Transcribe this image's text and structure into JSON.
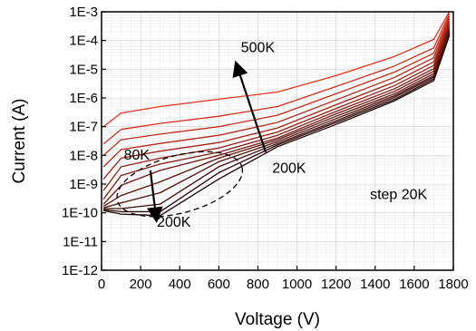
{
  "chart_data": {
    "type": "line",
    "title": "",
    "xlabel": "Voltage (V)",
    "ylabel": "Current (A)",
    "xlim": [
      0,
      1800
    ],
    "ylim": [
      1e-12,
      0.001
    ],
    "y_scale": "log",
    "x_ticks": [
      "0",
      "200",
      "400",
      "600",
      "800",
      "1000",
      "1200",
      "1400",
      "1600",
      "1800"
    ],
    "y_ticks": [
      "1E-12",
      "1E-11",
      "1E-10",
      "1E-9",
      "1E-8",
      "1E-7",
      "1E-6",
      "1E-5",
      "1E-4",
      "1E-3"
    ],
    "grid": true,
    "legend": "none",
    "series_color_range": [
      "#1a0000",
      "#e8321e"
    ],
    "series": [
      {
        "values": [
          [
            10,
            1.2e-10
          ],
          [
            100,
            9e-11
          ],
          [
            300,
            8e-11
          ],
          [
            600,
            1.5e-09
          ],
          [
            900,
            2e-08
          ],
          [
            1200,
            1.2e-07
          ],
          [
            1500,
            8e-07
          ],
          [
            1700,
            4e-06
          ],
          [
            1780,
            0.00015
          ]
        ]
      },
      {
        "values": [
          [
            10,
            1.3e-10
          ],
          [
            100,
            1.1e-10
          ],
          [
            300,
            1.1e-10
          ],
          [
            600,
            2.5e-09
          ],
          [
            900,
            2.3e-08
          ],
          [
            1200,
            1.4e-07
          ],
          [
            1500,
            9e-07
          ],
          [
            1700,
            4.6e-06
          ],
          [
            1780,
            0.00017
          ]
        ]
      },
      {
        "values": [
          [
            10,
            1.4e-10
          ],
          [
            100,
            1.4e-10
          ],
          [
            300,
            2e-10
          ],
          [
            600,
            4e-09
          ],
          [
            900,
            2.6e-08
          ],
          [
            1200,
            1.6e-07
          ],
          [
            1500,
            1.05e-06
          ],
          [
            1700,
            5.3e-06
          ],
          [
            1780,
            0.00019
          ]
        ]
      },
      {
        "values": [
          [
            10,
            1.5e-10
          ],
          [
            100,
            2.2e-10
          ],
          [
            300,
            5e-10
          ],
          [
            600,
            6e-09
          ],
          [
            900,
            3e-08
          ],
          [
            1200,
            1.9e-07
          ],
          [
            1500,
            1.2e-06
          ],
          [
            1700,
            6e-06
          ],
          [
            1780,
            0.00021
          ]
        ]
      },
      {
        "values": [
          [
            10,
            1.7e-10
          ],
          [
            100,
            4e-10
          ],
          [
            300,
            1.2e-09
          ],
          [
            600,
            8e-09
          ],
          [
            900,
            3.5e-08
          ],
          [
            1200,
            2.3e-07
          ],
          [
            1500,
            1.4e-06
          ],
          [
            1700,
            7e-06
          ],
          [
            1780,
            0.00024
          ]
        ]
      },
      {
        "values": [
          [
            10,
            2e-10
          ],
          [
            100,
            9e-10
          ],
          [
            300,
            3e-09
          ],
          [
            600,
            1e-08
          ],
          [
            900,
            4e-08
          ],
          [
            1200,
            2.8e-07
          ],
          [
            1500,
            1.7e-06
          ],
          [
            1700,
            8.5e-06
          ],
          [
            1780,
            0.00028
          ]
        ]
      },
      {
        "values": [
          [
            10,
            3e-10
          ],
          [
            100,
            2e-09
          ],
          [
            300,
            5e-09
          ],
          [
            600,
            1.3e-08
          ],
          [
            900,
            5e-08
          ],
          [
            1200,
            3.4e-07
          ],
          [
            1500,
            2.1e-06
          ],
          [
            1700,
            1.05e-05
          ],
          [
            1780,
            0.00033
          ]
        ]
      },
      {
        "values": [
          [
            10,
            6e-10
          ],
          [
            100,
            4e-09
          ],
          [
            300,
            8e-09
          ],
          [
            600,
            1.8e-08
          ],
          [
            900,
            6.5e-08
          ],
          [
            1200,
            4.3e-07
          ],
          [
            1500,
            2.7e-06
          ],
          [
            1700,
            1.35e-05
          ],
          [
            1780,
            0.0004
          ]
        ]
      },
      {
        "values": [
          [
            10,
            1.5e-09
          ],
          [
            100,
            8e-09
          ],
          [
            300,
            1.4e-08
          ],
          [
            600,
            2.8e-08
          ],
          [
            900,
            9e-08
          ],
          [
            1200,
            5.8e-07
          ],
          [
            1500,
            3.6e-06
          ],
          [
            1700,
            1.8e-05
          ],
          [
            1780,
            0.00048
          ]
        ]
      },
      {
        "values": [
          [
            10,
            4e-09
          ],
          [
            100,
            1.6e-08
          ],
          [
            300,
            2.6e-08
          ],
          [
            600,
            5e-08
          ],
          [
            900,
            1.4e-07
          ],
          [
            1200,
            8.5e-07
          ],
          [
            1500,
            5.2e-06
          ],
          [
            1700,
            2.5e-05
          ],
          [
            1780,
            0.00058
          ]
        ]
      },
      {
        "values": [
          [
            10,
            1e-08
          ],
          [
            100,
            3.5e-08
          ],
          [
            300,
            5.5e-08
          ],
          [
            600,
            1e-07
          ],
          [
            900,
            2.5e-07
          ],
          [
            1200,
            1.4e-06
          ],
          [
            1500,
            8e-06
          ],
          [
            1700,
            3.6e-05
          ],
          [
            1780,
            0.0007
          ]
        ]
      },
      {
        "values": [
          [
            10,
            2.5e-08
          ],
          [
            100,
            8e-08
          ],
          [
            300,
            1.3e-07
          ],
          [
            600,
            2.3e-07
          ],
          [
            900,
            5e-07
          ],
          [
            1200,
            2.5e-06
          ],
          [
            1500,
            1.3e-05
          ],
          [
            1700,
            5.5e-05
          ],
          [
            1780,
            0.00085
          ]
        ]
      },
      {
        "values": [
          [
            10,
            1e-07
          ],
          [
            100,
            3e-07
          ],
          [
            300,
            5e-07
          ],
          [
            600,
            9e-07
          ],
          [
            900,
            1.6e-06
          ],
          [
            1200,
            6e-06
          ],
          [
            1500,
            2.8e-05
          ],
          [
            1700,
            0.00011
          ],
          [
            1780,
            0.001
          ]
        ]
      }
    ],
    "annotations": [
      {
        "text": "500K",
        "x": 800,
        "y": 4e-05
      },
      {
        "text": "200K",
        "x": 960,
        "y": 2.5e-09
      },
      {
        "text": "80K",
        "x": 180,
        "y": 7e-09
      },
      {
        "text": "200K",
        "x": 370,
        "y": 3.3e-11
      },
      {
        "text": "step 20K",
        "x": 1520,
        "y": 3e-10
      }
    ],
    "arrows": [
      {
        "from": [
          840,
          1.3e-08
        ],
        "to": [
          690,
          1.5e-05
        ]
      },
      {
        "from": [
          250,
          3e-09
        ],
        "to": [
          280,
          6e-11
        ]
      }
    ],
    "highlight_ellipse": {
      "center": [
        400,
        1e-09
      ],
      "rx_data": 330,
      "ry_decades": 1.0,
      "rotation_deg": -15
    }
  }
}
